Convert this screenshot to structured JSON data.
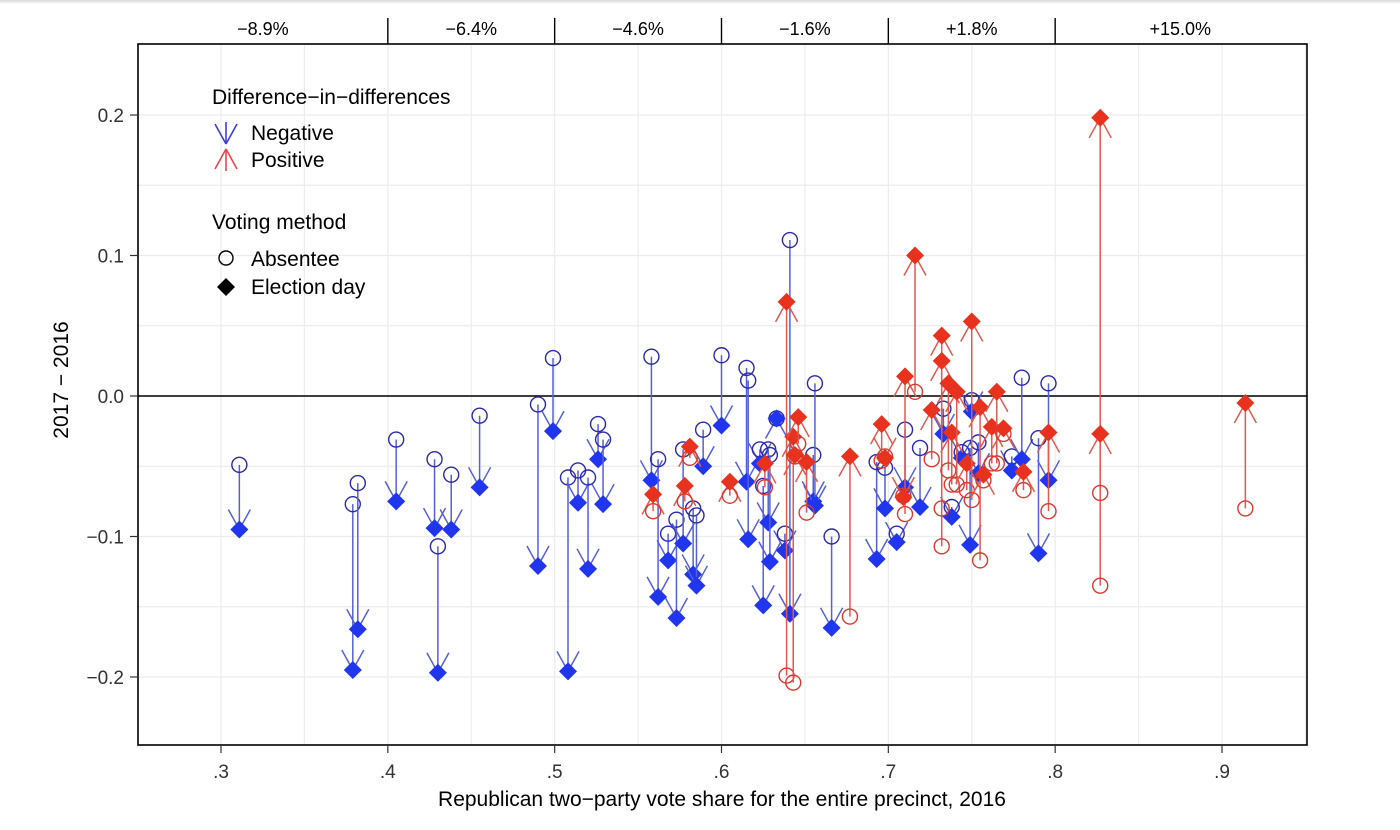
{
  "chart_data": {
    "type": "scatter",
    "title": "",
    "xlabel": "Republican two−party vote share for the entire precinct, 2016",
    "ylabel": "2017 − 2016",
    "xlim": [
      0.25,
      0.95
    ],
    "ylim": [
      -0.25,
      0.25
    ],
    "x_ticks": [
      0.3,
      0.4,
      0.5,
      0.6,
      0.7,
      0.8,
      0.9
    ],
    "x_tick_labels": [
      ".3",
      ".4",
      ".5",
      ".6",
      ".7",
      ".8",
      ".9"
    ],
    "y_ticks": [
      0.2,
      0.1,
      0.0,
      -0.1,
      -0.2
    ],
    "y_tick_labels": [
      "0.2",
      "0.1",
      "0.0",
      "−0.1",
      "−0.2"
    ],
    "grid": true,
    "reference_line_y": 0.0,
    "top_bins": {
      "boundaries": [
        0.25,
        0.4,
        0.5,
        0.6,
        0.7,
        0.8,
        0.95
      ],
      "labels": [
        "−8.9%",
        "−6.4%",
        "−4.6%",
        "−1.6%",
        "+1.8%",
        "+15.0%"
      ]
    },
    "legend": {
      "placement": "top-left",
      "groups": [
        {
          "title": "Difference−in−differences",
          "items": [
            {
              "label": "Negative",
              "symbol": "arrow-down",
              "color": "#3a3fd8"
            },
            {
              "label": "Positive",
              "symbol": "arrow-up",
              "color": "#e04a4a"
            }
          ]
        },
        {
          "title": "Voting method",
          "items": [
            {
              "label": "Absentee",
              "symbol": "hollow-circle"
            },
            {
              "label": "Election day",
              "symbol": "filled-diamond"
            }
          ]
        }
      ]
    },
    "colors": {
      "negative": "#1f35ee",
      "negative_line": "#5560d8",
      "positive": "#e8321e",
      "positive_line": "#e05a50",
      "absentee_negative": "#2a2aa8",
      "absentee_positive": "#d83a30"
    },
    "series": [
      {
        "name": "Negative",
        "description": "Precinct pairs: absentee change (circle) and election-day change (diamond); arrow points to the election-day value",
        "points": [
          {
            "x": 0.311,
            "absentee": -0.049,
            "election_day": -0.095
          },
          {
            "x": 0.379,
            "absentee": -0.077,
            "election_day": -0.195
          },
          {
            "x": 0.382,
            "absentee": -0.062,
            "election_day": -0.166
          },
          {
            "x": 0.405,
            "absentee": -0.031,
            "election_day": -0.075
          },
          {
            "x": 0.428,
            "absentee": -0.045,
            "election_day": -0.094
          },
          {
            "x": 0.43,
            "absentee": -0.107,
            "election_day": -0.197
          },
          {
            "x": 0.438,
            "absentee": -0.056,
            "election_day": -0.095
          },
          {
            "x": 0.455,
            "absentee": -0.014,
            "election_day": -0.065
          },
          {
            "x": 0.49,
            "absentee": -0.006,
            "election_day": -0.121
          },
          {
            "x": 0.499,
            "absentee": 0.027,
            "election_day": -0.025
          },
          {
            "x": 0.508,
            "absentee": -0.058,
            "election_day": -0.196
          },
          {
            "x": 0.514,
            "absentee": -0.053,
            "election_day": -0.076
          },
          {
            "x": 0.52,
            "absentee": -0.058,
            "election_day": -0.123
          },
          {
            "x": 0.526,
            "absentee": -0.02,
            "election_day": -0.045
          },
          {
            "x": 0.529,
            "absentee": -0.031,
            "election_day": -0.077
          },
          {
            "x": 0.558,
            "absentee": 0.028,
            "election_day": -0.06
          },
          {
            "x": 0.562,
            "absentee": -0.045,
            "election_day": -0.143
          },
          {
            "x": 0.568,
            "absentee": -0.098,
            "election_day": -0.117
          },
          {
            "x": 0.573,
            "absentee": -0.088,
            "election_day": -0.158
          },
          {
            "x": 0.577,
            "absentee": -0.038,
            "election_day": -0.105
          },
          {
            "x": 0.583,
            "absentee": -0.08,
            "election_day": -0.127
          },
          {
            "x": 0.585,
            "absentee": -0.085,
            "election_day": -0.135
          },
          {
            "x": 0.589,
            "absentee": -0.024,
            "election_day": -0.05
          },
          {
            "x": 0.6,
            "absentee": 0.029,
            "election_day": -0.021
          },
          {
            "x": 0.615,
            "absentee": 0.02,
            "election_day": -0.061
          },
          {
            "x": 0.616,
            "absentee": 0.011,
            "election_day": -0.102
          },
          {
            "x": 0.623,
            "absentee": -0.038,
            "election_day": -0.048
          },
          {
            "x": 0.625,
            "absentee": -0.064,
            "election_day": -0.149
          },
          {
            "x": 0.628,
            "absentee": -0.038,
            "election_day": -0.09
          },
          {
            "x": 0.629,
            "absentee": -0.042,
            "election_day": -0.118
          },
          {
            "x": 0.633,
            "absentee": -0.016,
            "election_day": -0.016
          },
          {
            "x": 0.638,
            "absentee": -0.098,
            "election_day": -0.11
          },
          {
            "x": 0.641,
            "absentee": 0.111,
            "election_day": -0.155
          },
          {
            "x": 0.655,
            "absentee": -0.042,
            "election_day": -0.075
          },
          {
            "x": 0.656,
            "absentee": 0.009,
            "election_day": -0.078
          },
          {
            "x": 0.666,
            "absentee": -0.1,
            "election_day": -0.165
          },
          {
            "x": 0.693,
            "absentee": -0.047,
            "election_day": -0.116
          },
          {
            "x": 0.698,
            "absentee": -0.051,
            "election_day": -0.08
          },
          {
            "x": 0.705,
            "absentee": -0.098,
            "election_day": -0.104
          },
          {
            "x": 0.71,
            "absentee": -0.024,
            "election_day": -0.065
          },
          {
            "x": 0.719,
            "absentee": -0.037,
            "election_day": -0.079
          },
          {
            "x": 0.733,
            "absentee": -0.009,
            "election_day": -0.027
          },
          {
            "x": 0.738,
            "absentee": -0.079,
            "election_day": -0.086
          },
          {
            "x": 0.744,
            "absentee": -0.04,
            "election_day": -0.044
          },
          {
            "x": 0.749,
            "absentee": -0.037,
            "election_day": -0.106
          },
          {
            "x": 0.75,
            "absentee": -0.003,
            "election_day": -0.011
          },
          {
            "x": 0.754,
            "absentee": -0.033,
            "election_day": -0.055
          },
          {
            "x": 0.774,
            "absentee": -0.043,
            "election_day": -0.053
          },
          {
            "x": 0.78,
            "absentee": 0.013,
            "election_day": -0.045
          },
          {
            "x": 0.79,
            "absentee": -0.03,
            "election_day": -0.112
          },
          {
            "x": 0.796,
            "absentee": 0.009,
            "election_day": -0.06
          }
        ]
      },
      {
        "name": "Positive",
        "description": "Precinct pairs: absentee change (circle) and election-day change (diamond); arrow points to the election-day value",
        "points": [
          {
            "x": 0.559,
            "absentee": -0.082,
            "election_day": -0.07
          },
          {
            "x": 0.581,
            "absentee": -0.044,
            "election_day": -0.036
          },
          {
            "x": 0.578,
            "absentee": -0.075,
            "election_day": -0.064
          },
          {
            "x": 0.605,
            "absentee": -0.071,
            "election_day": -0.061
          },
          {
            "x": 0.626,
            "absentee": -0.065,
            "election_day": -0.048
          },
          {
            "x": 0.639,
            "absentee": -0.199,
            "election_day": 0.067
          },
          {
            "x": 0.643,
            "absentee": -0.204,
            "election_day": -0.029
          },
          {
            "x": 0.644,
            "absentee": -0.043,
            "election_day": -0.042
          },
          {
            "x": 0.646,
            "absentee": -0.034,
            "election_day": -0.015
          },
          {
            "x": 0.651,
            "absentee": -0.083,
            "election_day": -0.047
          },
          {
            "x": 0.677,
            "absentee": -0.157,
            "election_day": -0.043
          },
          {
            "x": 0.696,
            "absentee": -0.046,
            "election_day": -0.02
          },
          {
            "x": 0.698,
            "absentee": -0.043,
            "election_day": -0.044
          },
          {
            "x": 0.71,
            "absentee": -0.084,
            "election_day": 0.014
          },
          {
            "x": 0.709,
            "absentee": -0.071,
            "election_day": -0.072
          },
          {
            "x": 0.716,
            "absentee": 0.003,
            "election_day": 0.1
          },
          {
            "x": 0.726,
            "absentee": -0.045,
            "election_day": -0.01
          },
          {
            "x": 0.732,
            "absentee": -0.107,
            "election_day": 0.043
          },
          {
            "x": 0.732,
            "absentee": -0.08,
            "election_day": 0.025
          },
          {
            "x": 0.736,
            "absentee": -0.053,
            "election_day": 0.009
          },
          {
            "x": 0.738,
            "absentee": -0.063,
            "election_day": -0.026
          },
          {
            "x": 0.741,
            "absentee": -0.063,
            "election_day": 0.003
          },
          {
            "x": 0.747,
            "absentee": -0.067,
            "election_day": -0.048
          },
          {
            "x": 0.75,
            "absentee": -0.074,
            "election_day": 0.053
          },
          {
            "x": 0.755,
            "absentee": -0.117,
            "election_day": -0.008
          },
          {
            "x": 0.757,
            "absentee": -0.06,
            "election_day": -0.056
          },
          {
            "x": 0.762,
            "absentee": -0.048,
            "election_day": -0.022
          },
          {
            "x": 0.765,
            "absentee": -0.048,
            "election_day": 0.003
          },
          {
            "x": 0.769,
            "absentee": -0.027,
            "election_day": -0.023
          },
          {
            "x": 0.781,
            "absentee": -0.067,
            "election_day": -0.054
          },
          {
            "x": 0.796,
            "absentee": -0.082,
            "election_day": -0.026
          },
          {
            "x": 0.827,
            "absentee": -0.135,
            "election_day": 0.198
          },
          {
            "x": 0.827,
            "absentee": -0.069,
            "election_day": -0.027
          },
          {
            "x": 0.914,
            "absentee": -0.08,
            "election_day": -0.005
          }
        ]
      }
    ]
  }
}
